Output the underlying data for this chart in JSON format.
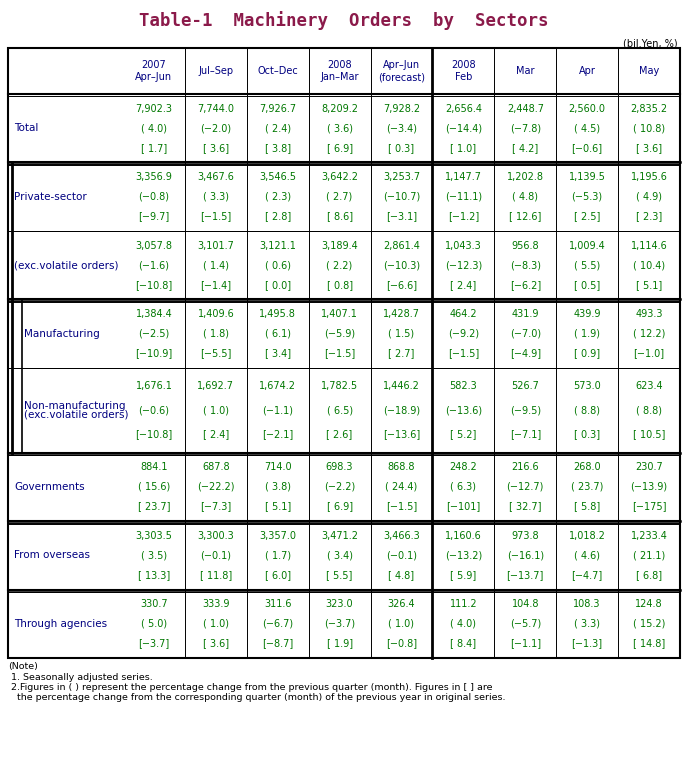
{
  "title": "Table-1  Machinery  Orders  by  Sectors",
  "title_color": "#8B1A4A",
  "subtitle": "(bil.Yen, %)",
  "col_headers": [
    "2007\nApr–Jun",
    "Jul–Sep",
    "Oct–Dec",
    "2008\nJan–Mar",
    "Apr–Jun\n(forecast)",
    "2008\nFeb",
    "Mar",
    "Apr",
    "May"
  ],
  "rows": [
    {
      "label": "Total",
      "indent": 0,
      "section_break_above": false,
      "subsection": false,
      "values": [
        [
          "7,902.3",
          "( 4.0)",
          "[ 1.7]"
        ],
        [
          "7,744.0",
          "(−2.0)",
          "[ 3.6]"
        ],
        [
          "7,926.7",
          "( 2.4)",
          "[ 3.8]"
        ],
        [
          "8,209.2",
          "( 3.6)",
          "[ 6.9]"
        ],
        [
          "7,928.2",
          "(−3.4)",
          "[ 0.3]"
        ],
        [
          "2,656.4",
          "(−14.4)",
          "[ 1.0]"
        ],
        [
          "2,448.7",
          "(−7.8)",
          "[ 4.2]"
        ],
        [
          "2,560.0",
          "( 4.5)",
          "[−0.6]"
        ],
        [
          "2,835.2",
          "( 10.8)",
          "[ 3.6]"
        ]
      ]
    },
    {
      "label": "Private-sector",
      "indent": 1,
      "section_break_above": true,
      "subsection": false,
      "values": [
        [
          "3,356.9",
          "(−0.8)",
          "[−9.7]"
        ],
        [
          "3,467.6",
          "( 3.3)",
          "[−1.5]"
        ],
        [
          "3,546.5",
          "( 2.3)",
          "[ 2.8]"
        ],
        [
          "3,642.2",
          "( 2.7)",
          "[ 8.6]"
        ],
        [
          "3,253.7",
          "(−10.7)",
          "[−3.1]"
        ],
        [
          "1,147.7",
          "(−11.1)",
          "[−1.2]"
        ],
        [
          "1,202.8",
          "( 4.8)",
          "[ 12.6]"
        ],
        [
          "1,139.5",
          "(−5.3)",
          "[ 2.5]"
        ],
        [
          "1,195.6",
          "( 4.9)",
          "[ 2.3]"
        ]
      ]
    },
    {
      "label": "(exc.volatile orders)",
      "indent": 1,
      "section_break_above": false,
      "subsection": false,
      "values": [
        [
          "3,057.8",
          "(−1.6)",
          "[−10.8]"
        ],
        [
          "3,101.7",
          "( 1.4)",
          "[−1.4]"
        ],
        [
          "3,121.1",
          "( 0.6)",
          "[ 0.0]"
        ],
        [
          "3,189.4",
          "( 2.2)",
          "[ 0.8]"
        ],
        [
          "2,861.4",
          "(−10.3)",
          "[−6.6]"
        ],
        [
          "1,043.3",
          "(−12.3)",
          "[ 2.4]"
        ],
        [
          "956.8",
          "(−8.3)",
          "[−6.2]"
        ],
        [
          "1,009.4",
          "( 5.5)",
          "[ 0.5]"
        ],
        [
          "1,114.6",
          "( 10.4)",
          "[ 5.1]"
        ]
      ]
    },
    {
      "label": "Manufacturing",
      "indent": 2,
      "section_break_above": true,
      "subsection": true,
      "values": [
        [
          "1,384.4",
          "(−2.5)",
          "[−10.9]"
        ],
        [
          "1,409.6",
          "( 1.8)",
          "[−5.5]"
        ],
        [
          "1,495.8",
          "( 6.1)",
          "[ 3.4]"
        ],
        [
          "1,407.1",
          "(−5.9)",
          "[−1.5]"
        ],
        [
          "1,428.7",
          "( 1.5)",
          "[ 2.7]"
        ],
        [
          "464.2",
          "(−9.2)",
          "[−1.5]"
        ],
        [
          "431.9",
          "(−7.0)",
          "[−4.9]"
        ],
        [
          "439.9",
          "( 1.9)",
          "[ 0.9]"
        ],
        [
          "493.3",
          "( 12.2)",
          "[−1.0]"
        ]
      ]
    },
    {
      "label": "Non-manufacturing\n(exc.volatile orders)",
      "indent": 2,
      "section_break_above": false,
      "subsection": true,
      "values": [
        [
          "1,676.1",
          "(−0.6)",
          "[−10.8]"
        ],
        [
          "1,692.7",
          "( 1.0)",
          "[ 2.4]"
        ],
        [
          "1,674.2",
          "(−1.1)",
          "[−2.1]"
        ],
        [
          "1,782.5",
          "( 6.5)",
          "[ 2.6]"
        ],
        [
          "1,446.2",
          "(−18.9)",
          "[−13.6]"
        ],
        [
          "582.3",
          "(−13.6)",
          "[ 5.2]"
        ],
        [
          "526.7",
          "(−9.5)",
          "[−7.1]"
        ],
        [
          "573.0",
          "( 8.8)",
          "[ 0.3]"
        ],
        [
          "623.4",
          "( 8.8)",
          "[ 10.5]"
        ]
      ]
    },
    {
      "label": "Governments",
      "indent": 0,
      "section_break_above": true,
      "subsection": false,
      "values": [
        [
          "884.1",
          "( 15.6)",
          "[ 23.7]"
        ],
        [
          "687.8",
          "(−22.2)",
          "[−7.3]"
        ],
        [
          "714.0",
          "( 3.8)",
          "[ 5.1]"
        ],
        [
          "698.3",
          "(−2.2)",
          "[ 6.9]"
        ],
        [
          "868.8",
          "( 24.4)",
          "[−1.5]"
        ],
        [
          "248.2",
          "( 6.3)",
          "[−101]"
        ],
        [
          "216.6",
          "(−12.7)",
          "[ 32.7]"
        ],
        [
          "268.0",
          "( 23.7)",
          "[ 5.8]"
        ],
        [
          "230.7",
          "(−13.9)",
          "[−175]"
        ]
      ]
    },
    {
      "label": "From overseas",
      "indent": 0,
      "section_break_above": true,
      "subsection": false,
      "values": [
        [
          "3,303.5",
          "( 3.5)",
          "[ 13.3]"
        ],
        [
          "3,300.3",
          "(−0.1)",
          "[ 11.8]"
        ],
        [
          "3,357.0",
          "( 1.7)",
          "[ 6.0]"
        ],
        [
          "3,471.2",
          "( 3.4)",
          "[ 5.5]"
        ],
        [
          "3,466.3",
          "(−0.1)",
          "[ 4.8]"
        ],
        [
          "1,160.6",
          "(−13.2)",
          "[ 5.9]"
        ],
        [
          "973.8",
          "(−16.1)",
          "[−13.7]"
        ],
        [
          "1,018.2",
          "( 4.6)",
          "[−4.7]"
        ],
        [
          "1,233.4",
          "( 21.1)",
          "[ 6.8]"
        ]
      ]
    },
    {
      "label": "Through agencies",
      "indent": 0,
      "section_break_above": true,
      "subsection": false,
      "values": [
        [
          "330.7",
          "( 5.0)",
          "[−3.7]"
        ],
        [
          "333.9",
          "( 1.0)",
          "[ 3.6]"
        ],
        [
          "311.6",
          "(−6.7)",
          "[−8.7]"
        ],
        [
          "323.0",
          "(−3.7)",
          "[ 1.9]"
        ],
        [
          "326.4",
          "( 1.0)",
          "[−0.8]"
        ],
        [
          "111.2",
          "( 4.0)",
          "[ 8.4]"
        ],
        [
          "104.8",
          "(−5.7)",
          "[−1.1]"
        ],
        [
          "108.3",
          "( 3.3)",
          "[−1.3]"
        ],
        [
          "124.8",
          "( 15.2)",
          "[ 14.8]"
        ]
      ]
    }
  ],
  "notes": [
    "(Note)",
    " 1. Seasonally adjusted series.",
    " 2.Figures in ( ) represent the percentage change from the previous quarter (month). Figures in [ ] are",
    "   the percentage change from the corresponding quarter (month) of the previous year in original series."
  ],
  "data_color": "#007700",
  "label_color": "#000080",
  "header_color": "#000080",
  "bg_color": "#FFFFFF",
  "note_color": "#000000"
}
